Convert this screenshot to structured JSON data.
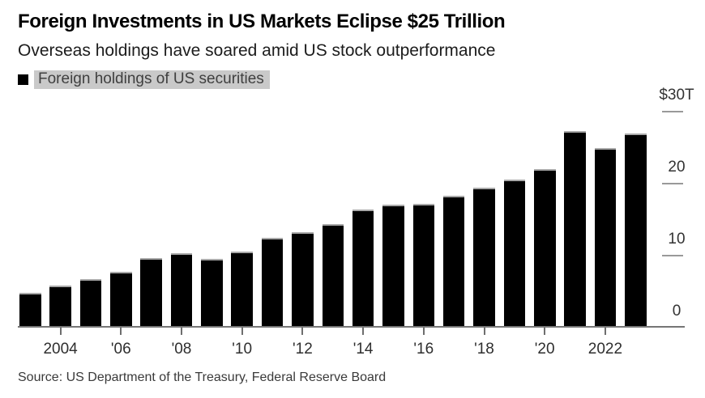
{
  "header": {
    "title": "Foreign Investments in US Markets Eclipse $25 Trillion",
    "subtitle": "Overseas holdings have soared amid US stock outperformance"
  },
  "legend": {
    "label": "Foreign holdings of US securities",
    "swatch_color": "#000000",
    "highlight_color": "#c9c9c9"
  },
  "footer": {
    "source": "Source: US Department of the Treasury, Federal Reserve Board"
  },
  "colors": {
    "bar": "#000000",
    "background": "#ffffff",
    "axis_label": "#333333",
    "y_tick": "#999999",
    "x_tick": "#6e6e6e",
    "baseline": "#757575"
  },
  "chart_data": {
    "type": "bar",
    "title": "Foreign Investments in US Markets Eclipse $25 Trillion",
    "subtitle": "Overseas holdings have soared amid US stock outperformance",
    "unit": "trillion USD",
    "categories": [
      2003,
      2004,
      2005,
      2006,
      2007,
      2008,
      2009,
      2010,
      2011,
      2012,
      2013,
      2014,
      2015,
      2016,
      2017,
      2018,
      2019,
      2020,
      2021,
      2022,
      2023
    ],
    "series": [
      {
        "name": "Foreign holdings of US securities",
        "values": [
          4.8,
          5.9,
          6.8,
          7.8,
          9.7,
          10.3,
          9.5,
          10.6,
          12.5,
          13.3,
          14.4,
          16.4,
          17.1,
          17.2,
          18.3,
          19.4,
          20.6,
          22.0,
          27.3,
          25.0,
          27.0
        ]
      }
    ],
    "ylim": [
      0,
      30
    ],
    "ytick_values": [
      0,
      10,
      20,
      30
    ],
    "ytick_labels": [
      "0",
      "10",
      "20",
      "$30T"
    ],
    "xticks": [
      {
        "year": 2004,
        "label": "2004"
      },
      {
        "year": 2006,
        "label": "'06"
      },
      {
        "year": 2008,
        "label": "'08"
      },
      {
        "year": 2010,
        "label": "'10"
      },
      {
        "year": 2012,
        "label": "'12"
      },
      {
        "year": 2014,
        "label": "'14"
      },
      {
        "year": 2016,
        "label": "'16"
      },
      {
        "year": 2018,
        "label": "'18"
      },
      {
        "year": 2020,
        "label": "'20"
      },
      {
        "year": 2022,
        "label": "2022"
      }
    ],
    "legend_position": "top-left",
    "grid": "right-side axis tick marks only",
    "source": "Source: US Department of the Treasury, Federal Reserve Board"
  }
}
